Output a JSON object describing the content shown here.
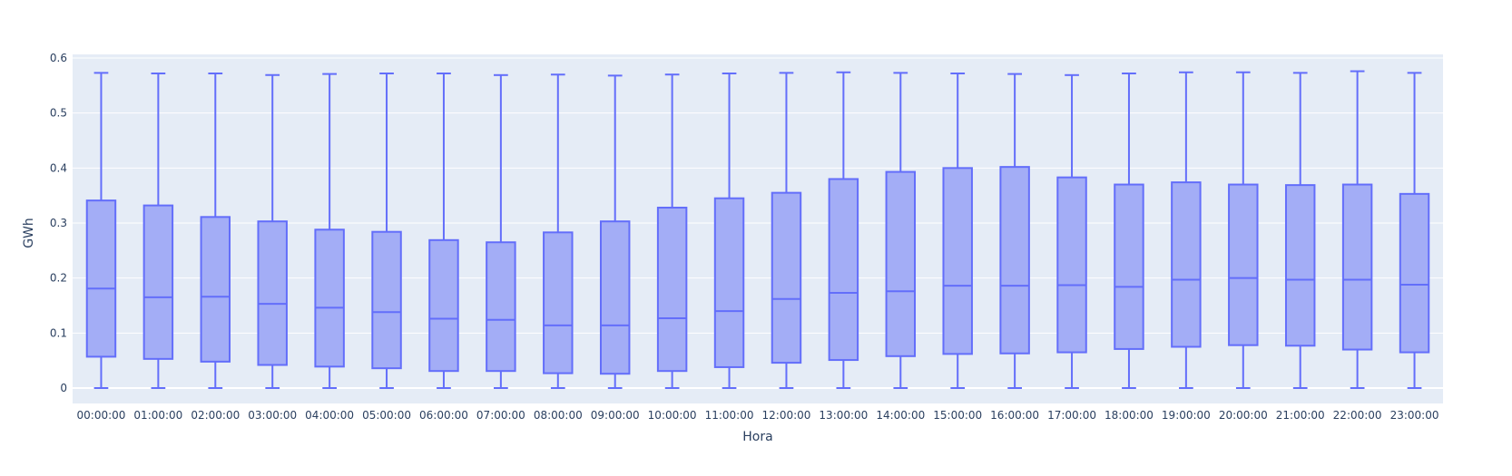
{
  "chart_data": {
    "type": "box",
    "xlabel": "Hora",
    "ylabel": "GWh",
    "ylim": [
      -0.03,
      0.6
    ],
    "yticks": [
      0,
      0.1,
      0.2,
      0.3,
      0.4,
      0.5,
      0.6
    ],
    "ytick_labels": [
      "0",
      "0.1",
      "0.2",
      "0.3",
      "0.4",
      "0.5",
      "0.6"
    ],
    "grid": true,
    "colors": {
      "plot_bg": "#e5ecf6",
      "grid": "#ffffff",
      "box_fill": "#a3adf6",
      "box_line": "#636efa",
      "text": "#2a3f5f"
    },
    "categories": [
      "00:00:00",
      "01:00:00",
      "02:00:00",
      "03:00:00",
      "04:00:00",
      "05:00:00",
      "06:00:00",
      "07:00:00",
      "08:00:00",
      "09:00:00",
      "10:00:00",
      "11:00:00",
      "12:00:00",
      "13:00:00",
      "14:00:00",
      "15:00:00",
      "16:00:00",
      "17:00:00",
      "18:00:00",
      "19:00:00",
      "20:00:00",
      "21:00:00",
      "22:00:00",
      "23:00:00"
    ],
    "boxes": [
      {
        "min": 0,
        "q1": 0.057,
        "median": 0.181,
        "q3": 0.341,
        "max": 0.573
      },
      {
        "min": 0,
        "q1": 0.053,
        "median": 0.165,
        "q3": 0.332,
        "max": 0.572
      },
      {
        "min": 0,
        "q1": 0.048,
        "median": 0.166,
        "q3": 0.311,
        "max": 0.572
      },
      {
        "min": 0,
        "q1": 0.042,
        "median": 0.153,
        "q3": 0.303,
        "max": 0.569
      },
      {
        "min": 0,
        "q1": 0.039,
        "median": 0.146,
        "q3": 0.288,
        "max": 0.571
      },
      {
        "min": 0,
        "q1": 0.036,
        "median": 0.138,
        "q3": 0.284,
        "max": 0.572
      },
      {
        "min": 0,
        "q1": 0.031,
        "median": 0.126,
        "q3": 0.269,
        "max": 0.572
      },
      {
        "min": 0,
        "q1": 0.031,
        "median": 0.124,
        "q3": 0.265,
        "max": 0.569
      },
      {
        "min": 0,
        "q1": 0.027,
        "median": 0.114,
        "q3": 0.283,
        "max": 0.57
      },
      {
        "min": 0,
        "q1": 0.026,
        "median": 0.114,
        "q3": 0.303,
        "max": 0.568
      },
      {
        "min": 0,
        "q1": 0.031,
        "median": 0.127,
        "q3": 0.328,
        "max": 0.57
      },
      {
        "min": 0,
        "q1": 0.038,
        "median": 0.14,
        "q3": 0.345,
        "max": 0.572
      },
      {
        "min": 0,
        "q1": 0.046,
        "median": 0.162,
        "q3": 0.355,
        "max": 0.573
      },
      {
        "min": 0,
        "q1": 0.051,
        "median": 0.173,
        "q3": 0.38,
        "max": 0.574
      },
      {
        "min": 0,
        "q1": 0.058,
        "median": 0.176,
        "q3": 0.393,
        "max": 0.573
      },
      {
        "min": 0,
        "q1": 0.062,
        "median": 0.186,
        "q3": 0.4,
        "max": 0.572
      },
      {
        "min": 0,
        "q1": 0.063,
        "median": 0.186,
        "q3": 0.402,
        "max": 0.571
      },
      {
        "min": 0,
        "q1": 0.065,
        "median": 0.187,
        "q3": 0.383,
        "max": 0.569
      },
      {
        "min": 0,
        "q1": 0.071,
        "median": 0.184,
        "q3": 0.37,
        "max": 0.572
      },
      {
        "min": 0,
        "q1": 0.075,
        "median": 0.197,
        "q3": 0.374,
        "max": 0.574
      },
      {
        "min": 0,
        "q1": 0.078,
        "median": 0.2,
        "q3": 0.37,
        "max": 0.574
      },
      {
        "min": 0,
        "q1": 0.077,
        "median": 0.197,
        "q3": 0.369,
        "max": 0.573
      },
      {
        "min": 0,
        "q1": 0.07,
        "median": 0.197,
        "q3": 0.37,
        "max": 0.576
      },
      {
        "min": 0,
        "q1": 0.065,
        "median": 0.188,
        "q3": 0.353,
        "max": 0.573
      }
    ]
  }
}
